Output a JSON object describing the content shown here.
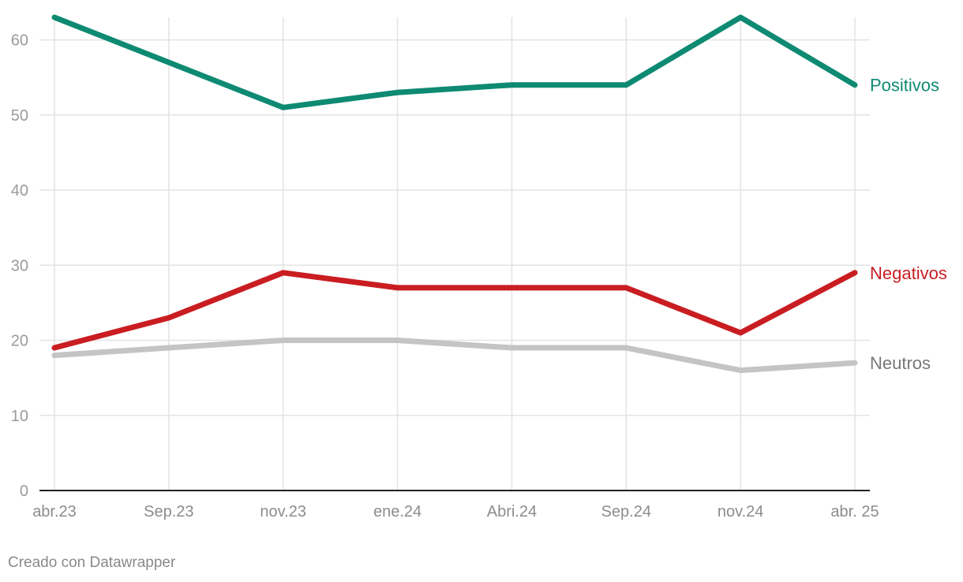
{
  "chart_data": {
    "type": "line",
    "categories": [
      "abr.23",
      "Sep.23",
      "nov.23",
      "ene.24",
      "Abri.24",
      "Sep.24",
      "nov.24",
      "abr. 25"
    ],
    "y_ticks": [
      0,
      10,
      20,
      30,
      40,
      50,
      60
    ],
    "ylim": [
      0,
      63
    ],
    "grid": true,
    "series": [
      {
        "name": "Positivos",
        "color": "#0e8a72",
        "values": [
          63,
          57,
          51,
          53,
          54,
          54,
          63,
          54
        ]
      },
      {
        "name": "Negativos",
        "color": "#c91d22",
        "values": [
          19,
          23,
          29,
          27,
          27,
          27,
          21,
          29
        ]
      },
      {
        "name": "Neutros",
        "color": "#c4c4c4",
        "label_color": "#777777",
        "values": [
          18,
          19,
          20,
          20,
          19,
          19,
          16,
          17
        ]
      }
    ]
  },
  "footer": {
    "credit": "Creado con Datawrapper"
  }
}
